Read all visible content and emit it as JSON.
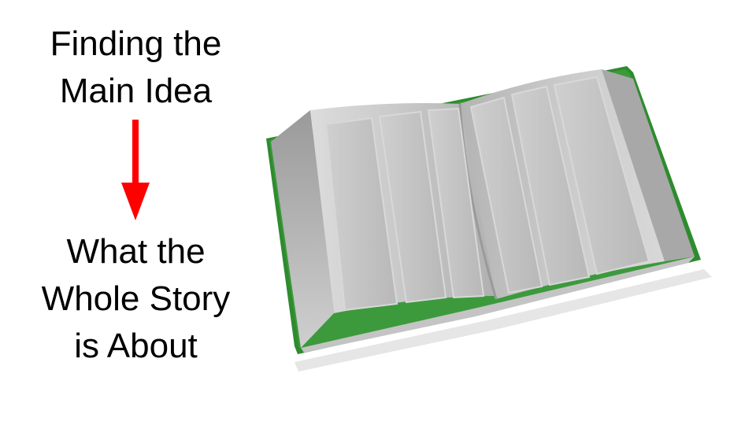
{
  "heading": {
    "line1": "Finding the",
    "line2": "Main Idea"
  },
  "arrow_icon": "down-arrow-icon",
  "arrow_color": "#ff0000",
  "subheading": {
    "line1": "What the",
    "line2": "Whole Story",
    "line3": "is About"
  },
  "book_icon": "open-book-icon",
  "book_cover_color": "#2e8b2e"
}
